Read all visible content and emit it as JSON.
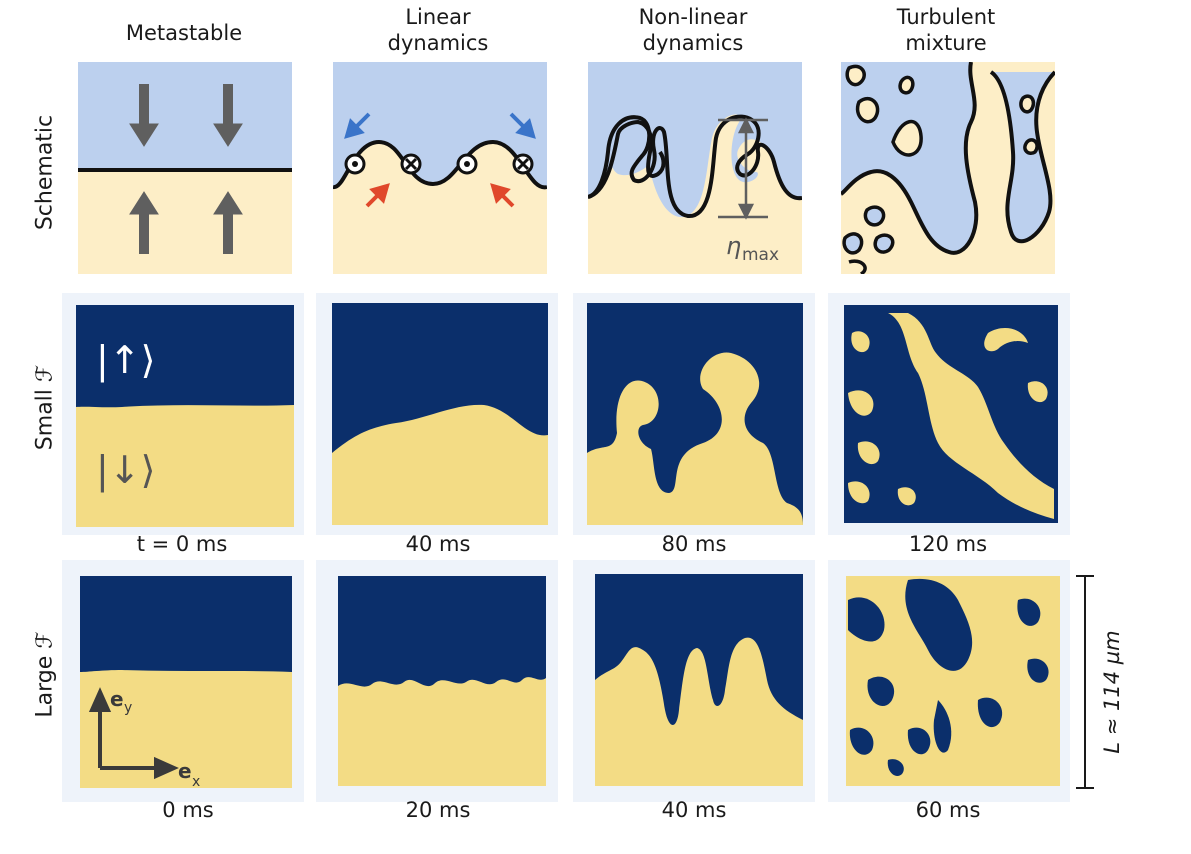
{
  "columns": [
    {
      "title_line1": "",
      "title_line2": "Metastable"
    },
    {
      "title_line1": "Linear",
      "title_line2": "dynamics"
    },
    {
      "title_line1": "Non-linear",
      "title_line2": "dynamics"
    },
    {
      "title_line1": "Turbulent",
      "title_line2": "mixture"
    }
  ],
  "rows": {
    "schematic": "Schematic",
    "small": "Small ℱ",
    "large": "Large ℱ"
  },
  "times_small": [
    "t = 0 ms",
    "40 ms",
    "80 ms",
    "120 ms"
  ],
  "times_large": [
    "0 ms",
    "20 ms",
    "40 ms",
    "60 ms"
  ],
  "state_up": "|↑⟩",
  "state_down": "|↓⟩",
  "eta_label": "η",
  "eta_sub": "max",
  "axis_ey": "e",
  "axis_ey_sub": "y",
  "axis_ex": "e",
  "axis_ex_sub": "x",
  "scale": "L ≈ 114 µm",
  "colors": {
    "spin_up_dark": "#0b2f6b",
    "spin_down_yellow": "#f3dc85",
    "schematic_blue": "#bcd0ee",
    "schematic_yellow": "#fdeec7",
    "arrow_gray": "#5f5f5f",
    "arrow_blue": "#3a74c9",
    "arrow_red": "#e0482b"
  }
}
